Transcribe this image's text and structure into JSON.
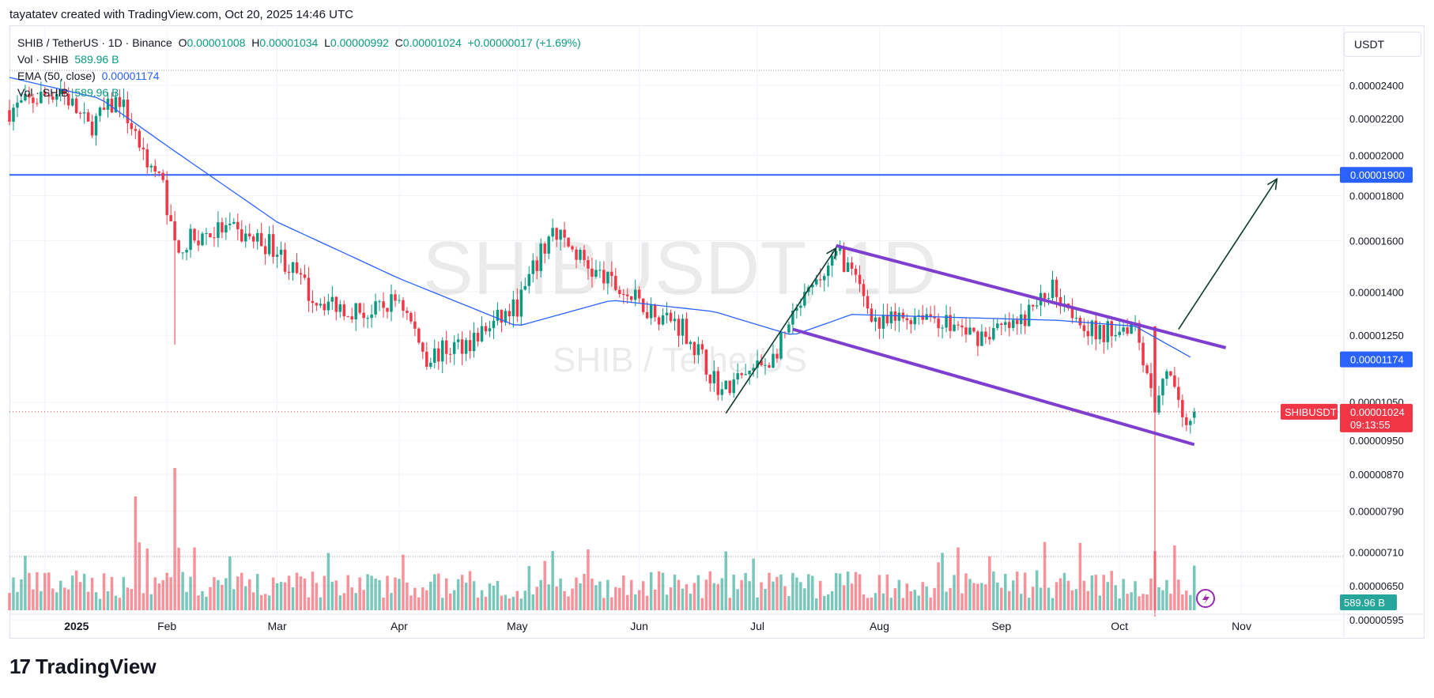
{
  "header": {
    "attribution": "tayatatev created with TradingView.com, Oct 20, 2025 14:46 UTC"
  },
  "legend": {
    "symbol": "SHIB / TetherUS · 1D · Binance",
    "o_label": "O",
    "o_value": "0.00001008",
    "h_label": "H",
    "h_value": "0.00001034",
    "l_label": "L",
    "l_value": "0.00000992",
    "c_label": "C",
    "c_value": "0.00001024",
    "change": "+0.00000017 (+1.69%)",
    "vol_label": "Vol · SHIB",
    "vol_value": "589.96 B",
    "ema_label": "EMA (50, close)",
    "ema_value": "0.00001174",
    "vol2_label": "Vol · SHIB",
    "vol2_value": "589.96 B"
  },
  "currency_button": "USDT",
  "watermark": {
    "ticker": "SHIBUSDT, 1D",
    "name": "SHIB / TetherUS"
  },
  "brand": {
    "name": "TradingView",
    "logo": "tradingview-logo-icon"
  },
  "colors": {
    "up": "#089981",
    "down": "#f23645",
    "ema": "#2962ff",
    "level": "#2962ff",
    "channel": "#7e3fd0",
    "arrow": "#0d3b2e"
  },
  "chart_data": {
    "type": "candlestick",
    "y_scale": "log",
    "ylim": [
      6e-06,
      2.5e-06
    ],
    "x_range": [
      "2024-12-23",
      "2025-11-26"
    ],
    "x_ticks": [
      {
        "label": "2025",
        "date": "2025-01-01",
        "bold": true
      },
      {
        "label": "Feb",
        "date": "2025-02-01"
      },
      {
        "label": "Mar",
        "date": "2025-03-01"
      },
      {
        "label": "Apr",
        "date": "2025-04-01"
      },
      {
        "label": "May",
        "date": "2025-05-01"
      },
      {
        "label": "Jun",
        "date": "2025-06-01"
      },
      {
        "label": "Jul",
        "date": "2025-07-01"
      },
      {
        "label": "Aug",
        "date": "2025-08-01"
      },
      {
        "label": "Sep",
        "date": "2025-09-01"
      },
      {
        "label": "Oct",
        "date": "2025-10-01"
      },
      {
        "label": "Nov",
        "date": "2025-11-01"
      }
    ],
    "y_ticks": [
      "0.00002400",
      "0.00002200",
      "0.00002000",
      "0.00001800",
      "0.00001600",
      "0.00001400",
      "0.00001250",
      "0.00001050",
      "0.00000950",
      "0.00000870",
      "0.00000790",
      "0.00000710",
      "0.00000650",
      "0.00000595"
    ],
    "price_labels": [
      {
        "value": "0.00001900",
        "price": 1.9e-05,
        "color": "#2962ff"
      },
      {
        "value": "0.00001174",
        "price": 1.174e-05,
        "color": "#2962ff"
      },
      {
        "value": "0.00001024",
        "price": 1.024e-05,
        "color": "#f23645",
        "timer": "09:13:55",
        "tag": "SHIBUSDT"
      }
    ],
    "volume_label": "589.96 B",
    "horizontal_level": 1.9e-05,
    "last_price": 1.024e-05,
    "ema_anchors": [
      [
        "2024-12-23",
        2.45e-05
      ],
      [
        "2025-01-15",
        2.32e-05
      ],
      [
        "2025-02-01",
        2.05e-05
      ],
      [
        "2025-03-01",
        1.68e-05
      ],
      [
        "2025-04-01",
        1.45e-05
      ],
      [
        "2025-05-01",
        1.28e-05
      ],
      [
        "2025-05-25",
        1.37e-05
      ],
      [
        "2025-06-20",
        1.33e-05
      ],
      [
        "2025-07-10",
        1.25e-05
      ],
      [
        "2025-07-25",
        1.32e-05
      ],
      [
        "2025-08-20",
        1.31e-05
      ],
      [
        "2025-09-15",
        1.3e-05
      ],
      [
        "2025-10-05",
        1.28e-05
      ],
      [
        "2025-10-20",
        1.174e-05
      ]
    ],
    "price_path": [
      [
        "2024-12-23",
        2.25e-05
      ],
      [
        "2025-01-05",
        2.38e-05
      ],
      [
        "2025-01-12",
        2.15e-05
      ],
      [
        "2025-01-20",
        2.32e-05
      ],
      [
        "2025-01-25",
        2.05e-05
      ],
      [
        "2025-01-31",
        1.85e-05
      ],
      [
        "2025-02-03",
        1.58e-05
      ],
      [
        "2025-02-15",
        1.65e-05
      ],
      [
        "2025-02-28",
        1.58e-05
      ],
      [
        "2025-03-10",
        1.38e-05
      ],
      [
        "2025-03-25",
        1.32e-05
      ],
      [
        "2025-04-01",
        1.38e-05
      ],
      [
        "2025-04-08",
        1.18e-05
      ],
      [
        "2025-04-20",
        1.24e-05
      ],
      [
        "2025-05-01",
        1.35e-05
      ],
      [
        "2025-05-10",
        1.65e-05
      ],
      [
        "2025-05-20",
        1.48e-05
      ],
      [
        "2025-06-01",
        1.36e-05
      ],
      [
        "2025-06-12",
        1.28e-05
      ],
      [
        "2025-06-22",
        1.08e-05
      ],
      [
        "2025-07-05",
        1.18e-05
      ],
      [
        "2025-07-12",
        1.35e-05
      ],
      [
        "2025-07-22",
        1.55e-05
      ],
      [
        "2025-08-01",
        1.28e-05
      ],
      [
        "2025-08-12",
        1.33e-05
      ],
      [
        "2025-08-25",
        1.25e-05
      ],
      [
        "2025-09-05",
        1.28e-05
      ],
      [
        "2025-09-14",
        1.42e-05
      ],
      [
        "2025-09-25",
        1.25e-05
      ],
      [
        "2025-10-05",
        1.3e-05
      ],
      [
        "2025-10-10",
        1.04e-05
      ],
      [
        "2025-10-13",
        1.15e-05
      ],
      [
        "2025-10-17",
        9.9e-06
      ],
      [
        "2025-10-20",
        1.024e-05
      ]
    ],
    "volume_spikes": [
      [
        "2025-01-24",
        1.0
      ],
      [
        "2025-02-03",
        1.25
      ],
      [
        "2025-02-04",
        0.55
      ],
      [
        "2025-05-10",
        0.52
      ],
      [
        "2025-10-10",
        0.52
      ]
    ],
    "annotations": {
      "channel_upper": [
        [
          "2025-07-21",
          1.58e-05
        ],
        [
          "2025-10-28",
          1.21e-05
        ]
      ],
      "channel_lower": [
        [
          "2025-07-10",
          1.27e-05
        ],
        [
          "2025-10-20",
          9.4e-06
        ]
      ],
      "arrow_up_1": [
        [
          "2025-06-23",
          1.02e-05
        ],
        [
          "2025-07-21",
          1.57e-05
        ]
      ],
      "arrow_up_2": [
        [
          "2025-10-16",
          1.27e-05
        ],
        [
          "2025-11-10",
          1.88e-05
        ]
      ]
    }
  }
}
